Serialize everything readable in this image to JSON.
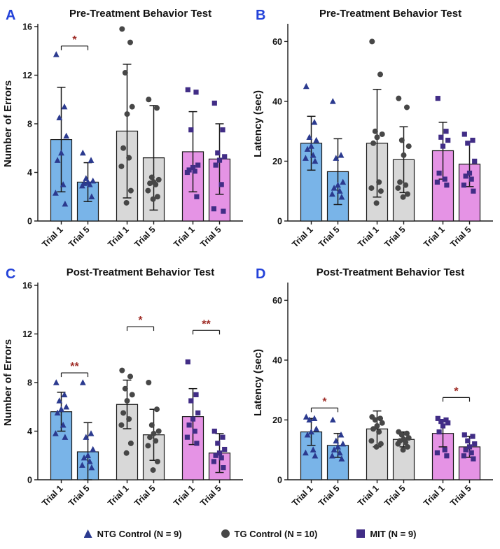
{
  "legend": [
    {
      "label": "NTG Control (N = 9)",
      "marker": "triangle",
      "color": "#2b3a8f"
    },
    {
      "label": "TG Control (N = 10)",
      "marker": "circle",
      "color": "#474747"
    },
    {
      "label": "MIT (N = 9)",
      "marker": "square",
      "color": "#412d86"
    }
  ],
  "colors": {
    "panel_letter": "#2342d9",
    "significance": "#9e2b25",
    "ntg_bar": "#79b4e8",
    "tg_bar": "#d8d8d8",
    "mit_bar": "#e593e5"
  },
  "chart_data": [
    {
      "panel": "A",
      "type": "bar",
      "title": "Pre-Treatment Behavior Test",
      "ylabel": "Number of Errors",
      "ylim": [
        0,
        16
      ],
      "yticks": [
        0,
        4,
        8,
        12,
        16
      ],
      "categories": [
        "Trial 1",
        "Trial 5"
      ],
      "groups": [
        {
          "name": "NTG Control",
          "fill": "#79b4e8",
          "marker": "triangle",
          "marker_color": "#2b3a8f",
          "bars": [
            {
              "label": "Trial 1",
              "mean": 6.7,
              "err": 4.3,
              "points": [
                13.7,
                9.4,
                8.5,
                7,
                5.6,
                5,
                3,
                2.3,
                1.4
              ]
            },
            {
              "label": "Trial 5",
              "mean": 3.2,
              "err": 1.6,
              "points": [
                5.6,
                5,
                3.5,
                3.3,
                3.2,
                3.1,
                3,
                2.9,
                2
              ]
            }
          ]
        },
        {
          "name": "TG Control",
          "fill": "#d8d8d8",
          "marker": "circle",
          "marker_color": "#474747",
          "bars": [
            {
              "label": "Trial 1",
              "mean": 7.4,
              "err": 5.5,
              "points": [
                15.8,
                14.7,
                12.2,
                9.4,
                8.8,
                6,
                5.2,
                4.5,
                2.5,
                1.5
              ]
            },
            {
              "label": "Trial 5",
              "mean": 5.2,
              "err": 4.3,
              "points": [
                10,
                9.3,
                3.6,
                3.4,
                3.2,
                3.1,
                3,
                2.5,
                2,
                1.8
              ]
            }
          ]
        },
        {
          "name": "MIT",
          "fill": "#e593e5",
          "marker": "square",
          "marker_color": "#412d86",
          "bars": [
            {
              "label": "Trial 1",
              "mean": 5.7,
              "err": 3.3,
              "points": [
                10.8,
                10.6,
                7.5,
                4.6,
                4.4,
                4.2,
                4.1,
                4,
                2
              ]
            },
            {
              "label": "Trial 5",
              "mean": 5.1,
              "err": 2.9,
              "points": [
                9.7,
                7.5,
                5.6,
                5.3,
                5,
                4.6,
                3,
                1,
                0.8
              ]
            }
          ]
        }
      ],
      "significance": [
        {
          "group": 0,
          "label": "*",
          "y": 14.4
        }
      ]
    },
    {
      "panel": "B",
      "type": "bar",
      "title": "Pre-Treatment Behavior Test",
      "ylabel": "Latency (sec)",
      "ylim": [
        0,
        65
      ],
      "yticks": [
        0,
        20,
        40,
        60
      ],
      "categories": [
        "Trial 1",
        "Trial 5"
      ],
      "groups": [
        {
          "name": "NTG Control",
          "fill": "#79b4e8",
          "marker": "triangle",
          "marker_color": "#2b3a8f",
          "bars": [
            {
              "label": "Trial 1",
              "mean": 26,
              "err": 9,
              "points": [
                45,
                33,
                28,
                27,
                25,
                24,
                22,
                21,
                20
              ]
            },
            {
              "label": "Trial 5",
              "mean": 16.5,
              "err": 11,
              "points": [
                40,
                22,
                21,
                13,
                12,
                11,
                10,
                9,
                8
              ]
            }
          ]
        },
        {
          "name": "TG Control",
          "fill": "#d8d8d8",
          "marker": "circle",
          "marker_color": "#474747",
          "bars": [
            {
              "label": "Trial 1",
              "mean": 26,
              "err": 18,
              "points": [
                60,
                49,
                30,
                29,
                28,
                26,
                13,
                11,
                10,
                6
              ]
            },
            {
              "label": "Trial 5",
              "mean": 20.5,
              "err": 11,
              "points": [
                41,
                38,
                27,
                25,
                22,
                13,
                12,
                11,
                9,
                8
              ]
            }
          ]
        },
        {
          "name": "MIT",
          "fill": "#e593e5",
          "marker": "square",
          "marker_color": "#412d86",
          "bars": [
            {
              "label": "Trial 1",
              "mean": 23.5,
              "err": 9.5,
              "points": [
                41,
                30,
                28,
                27,
                25,
                16,
                14,
                13,
                12
              ]
            },
            {
              "label": "Trial 5",
              "mean": 19,
              "err": 7.5,
              "points": [
                29,
                27,
                26,
                20,
                16,
                15,
                14,
                12,
                10
              ]
            }
          ]
        }
      ],
      "significance": []
    },
    {
      "panel": "C",
      "type": "bar",
      "title": "Post-Treatment Behavior Test",
      "ylabel": "Number of Errors",
      "ylim": [
        0,
        16
      ],
      "yticks": [
        0,
        4,
        8,
        12,
        16
      ],
      "categories": [
        "Trial 1",
        "Trial 5"
      ],
      "groups": [
        {
          "name": "NTG Control",
          "fill": "#79b4e8",
          "marker": "triangle",
          "marker_color": "#2b3a8f",
          "bars": [
            {
              "label": "Trial 1",
              "mean": 5.6,
              "err": 1.6,
              "points": [
                8,
                7,
                6.5,
                6,
                5.8,
                5.5,
                4.5,
                3.8,
                3.5
              ]
            },
            {
              "label": "Trial 5",
              "mean": 2.3,
              "err": 2.4,
              "points": [
                8,
                3.8,
                3.5,
                2.5,
                2,
                1.8,
                1.5,
                1.2,
                1
              ]
            }
          ]
        },
        {
          "name": "TG Control",
          "fill": "#d8d8d8",
          "marker": "circle",
          "marker_color": "#474747",
          "bars": [
            {
              "label": "Trial 1",
              "mean": 6.2,
              "err": 2,
              "points": [
                9,
                8.5,
                7.5,
                7,
                6.5,
                5.5,
                5,
                4.5,
                3,
                2.2
              ]
            },
            {
              "label": "Trial 5",
              "mean": 3.7,
              "err": 2.1,
              "points": [
                8,
                5.8,
                4.5,
                4,
                3.8,
                3.5,
                3.2,
                2.8,
                1.5,
                0.8
              ]
            }
          ]
        },
        {
          "name": "MIT",
          "fill": "#e593e5",
          "marker": "square",
          "marker_color": "#412d86",
          "bars": [
            {
              "label": "Trial 1",
              "mean": 5.2,
              "err": 2.3,
              "points": [
                9.7,
                7,
                6.5,
                5.5,
                5,
                4.5,
                4,
                3.5,
                3
              ]
            },
            {
              "label": "Trial 5",
              "mean": 2.2,
              "err": 1.6,
              "points": [
                4,
                3.5,
                3,
                2.5,
                2.2,
                2,
                1.8,
                1.5,
                1
              ]
            }
          ]
        }
      ],
      "significance": [
        {
          "group": 0,
          "label": "**",
          "y": 8.8
        },
        {
          "group": 1,
          "label": "*",
          "y": 12.6
        },
        {
          "group": 2,
          "label": "**",
          "y": 12.3
        }
      ]
    },
    {
      "panel": "D",
      "type": "bar",
      "title": "Post-Treatment Behavior Test",
      "ylabel": "Latency (sec)",
      "ylim": [
        0,
        65
      ],
      "yticks": [
        0,
        20,
        40,
        60
      ],
      "categories": [
        "Trial 1",
        "Trial 5"
      ],
      "groups": [
        {
          "name": "NTG Control",
          "fill": "#79b4e8",
          "marker": "triangle",
          "marker_color": "#2b3a8f",
          "bars": [
            {
              "label": "Trial 1",
              "mean": 16,
              "err": 4.5,
              "points": [
                21,
                20.5,
                20,
                17,
                16,
                15,
                10,
                9,
                8
              ]
            },
            {
              "label": "Trial 5",
              "mean": 11.5,
              "err": 4,
              "points": [
                20,
                15,
                13,
                12,
                11,
                10,
                9,
                8,
                7
              ]
            }
          ]
        },
        {
          "name": "TG Control",
          "fill": "#d8d8d8",
          "marker": "circle",
          "marker_color": "#474747",
          "bars": [
            {
              "label": "Trial 1",
              "mean": 17,
              "err": 6,
              "points": [
                21,
                20.5,
                20,
                19,
                18,
                17,
                16,
                13,
                12,
                11
              ]
            },
            {
              "label": "Trial 5",
              "mean": 13.5,
              "err": 2.5,
              "points": [
                16,
                15.5,
                15,
                14,
                13.5,
                13,
                12.5,
                12,
                11,
                10
              ]
            }
          ]
        },
        {
          "name": "MIT",
          "fill": "#e593e5",
          "marker": "square",
          "marker_color": "#412d86",
          "bars": [
            {
              "label": "Trial 1",
              "mean": 15.5,
              "err": 4.5,
              "points": [
                20.5,
                20,
                19.5,
                19,
                18,
                16,
                10,
                9,
                8
              ]
            },
            {
              "label": "Trial 5",
              "mean": 11,
              "err": 3.5,
              "points": [
                15,
                14.5,
                13,
                12,
                11,
                10,
                9,
                8,
                7
              ]
            }
          ]
        }
      ],
      "significance": [
        {
          "group": 0,
          "label": "*",
          "y": 24
        },
        {
          "group": 2,
          "label": "*",
          "y": 27.5
        }
      ]
    }
  ]
}
